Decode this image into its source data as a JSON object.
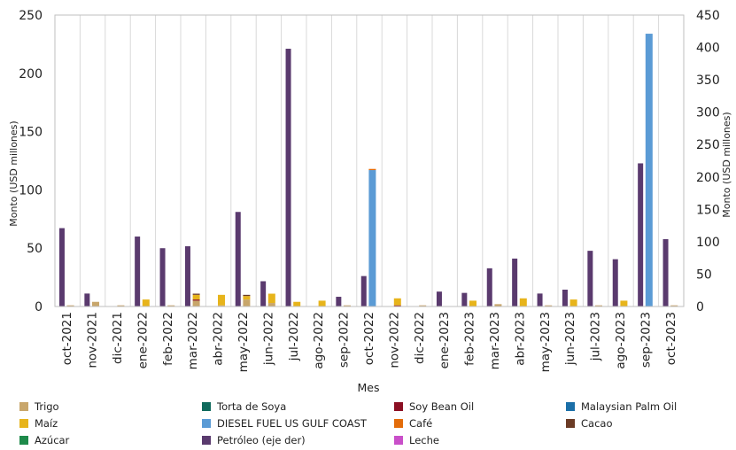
{
  "chart_data": {
    "type": "bar",
    "xlabel": "Mes",
    "ylabel_left": "Monto (USD millones)",
    "ylabel_right": "Monto (USD millones)",
    "ylim_left": [
      0,
      250
    ],
    "ylim_right": [
      0,
      450
    ],
    "yticks_left": [
      "0",
      "50",
      "100",
      "150",
      "200",
      "250"
    ],
    "yticks_right": [
      "0",
      "50",
      "100",
      "150",
      "200",
      "250",
      "300",
      "350",
      "400",
      "450"
    ],
    "grid": "vertical",
    "legend_position": "bottom",
    "categories": [
      "oct-2021",
      "nov-2021",
      "dic-2021",
      "ene-2022",
      "feb-2022",
      "mar-2022",
      "abr-2022",
      "may-2022",
      "jun-2022",
      "jul-2022",
      "ago-2022",
      "sep-2022",
      "oct-2022",
      "nov-2022",
      "dic-2022",
      "ene-2023",
      "feb-2023",
      "mar-2023",
      "abr-2023",
      "may-2023",
      "jun-2023",
      "jul-2023",
      "ago-2023",
      "sep-2023",
      "oct-2023"
    ],
    "stacked_left_series": [
      {
        "name": "Trigo",
        "color": "#c8a66b",
        "values": [
          1,
          4,
          1,
          0,
          1,
          5,
          1,
          6,
          3,
          0,
          0,
          1,
          0,
          0,
          1,
          0,
          0,
          2,
          0,
          1,
          0,
          1,
          0,
          0,
          1
        ]
      },
      {
        "name": "Torta de Soya",
        "color": "#0f6a5c",
        "values": [
          0,
          0,
          0,
          0,
          0,
          0,
          0,
          0,
          0,
          0,
          0,
          0,
          0,
          0,
          0,
          0,
          0,
          0,
          0,
          0,
          0,
          0,
          0,
          0,
          0
        ]
      },
      {
        "name": "Soy Bean Oil",
        "color": "#8b0f23",
        "values": [
          0,
          0,
          0,
          0,
          0,
          1,
          0,
          0,
          0,
          0,
          0,
          0,
          0,
          1,
          0,
          0,
          0,
          0,
          0,
          0,
          0,
          0,
          0,
          0,
          0
        ]
      },
      {
        "name": "Malaysian Palm Oil",
        "color": "#1b6fa8",
        "values": [
          0,
          0,
          0,
          0,
          0,
          0,
          0,
          0,
          0,
          0,
          0,
          0,
          0,
          0,
          0,
          0,
          0,
          0,
          0,
          0,
          0,
          0,
          0,
          0,
          0
        ]
      },
      {
        "name": "Maíz",
        "color": "#e7b41b",
        "values": [
          0,
          0,
          0,
          6,
          0,
          4,
          9,
          3,
          8,
          4,
          5,
          0,
          0,
          6,
          0,
          0,
          5,
          0,
          7,
          0,
          6,
          0,
          5,
          0,
          0
        ]
      },
      {
        "name": "DIESEL FUEL US GULF COAST",
        "color": "#5b9bd5",
        "values": [
          0,
          0,
          0,
          0,
          0,
          0,
          0,
          0,
          0,
          0,
          0,
          0,
          117,
          0,
          0,
          0,
          0,
          0,
          0,
          0,
          0,
          0,
          0,
          234,
          0
        ]
      },
      {
        "name": "Café",
        "color": "#e36c0a",
        "values": [
          0,
          0,
          0,
          0,
          0,
          0,
          0,
          0,
          0,
          0,
          0,
          0,
          1,
          0,
          0,
          0,
          0,
          0,
          0,
          0,
          0,
          0,
          0,
          0,
          0
        ]
      },
      {
        "name": "Cacao",
        "color": "#6b3b25",
        "values": [
          0,
          0,
          0,
          0,
          0,
          1,
          0,
          1,
          0,
          0,
          0,
          0,
          0,
          0,
          0,
          0,
          0,
          0,
          0,
          0,
          0,
          0,
          0,
          0,
          0
        ]
      },
      {
        "name": "Azúcar",
        "color": "#1e8a4a",
        "values": [
          0,
          0,
          0,
          0,
          0,
          0,
          0,
          0,
          0,
          0,
          0,
          0,
          0,
          0,
          0,
          0,
          0,
          0,
          0,
          0,
          0,
          0,
          0,
          0,
          0
        ]
      },
      {
        "name": "Leche",
        "color": "#c94fc9",
        "values": [
          0,
          0,
          0,
          0,
          0,
          0,
          0,
          0,
          0,
          0,
          0,
          0,
          0,
          0,
          0,
          0,
          0,
          0,
          0,
          0,
          0,
          0,
          0,
          0,
          0
        ]
      }
    ],
    "right_series": {
      "name": "Petróleo (eje der)",
      "color": "#5a3a6e",
      "values": [
        121,
        20,
        0,
        108,
        90,
        93,
        0,
        146,
        39,
        398,
        0,
        15,
        47,
        0,
        0,
        23,
        21,
        59,
        74,
        20,
        26,
        86,
        73,
        221,
        104
      ]
    },
    "legend": [
      {
        "label": "Trigo",
        "color": "#c8a66b"
      },
      {
        "label": "Torta de Soya",
        "color": "#0f6a5c"
      },
      {
        "label": "Soy Bean Oil",
        "color": "#8b0f23"
      },
      {
        "label": "Malaysian Palm Oil",
        "color": "#1b6fa8"
      },
      {
        "label": "Maíz",
        "color": "#e7b41b"
      },
      {
        "label": "DIESEL FUEL US GULF COAST",
        "color": "#5b9bd5"
      },
      {
        "label": "Café",
        "color": "#e36c0a"
      },
      {
        "label": "Cacao",
        "color": "#6b3b25"
      },
      {
        "label": "Azúcar",
        "color": "#1e8a4a"
      },
      {
        "label": "Petróleo (eje der)",
        "color": "#5a3a6e"
      },
      {
        "label": "Leche",
        "color": "#c94fc9"
      }
    ]
  }
}
